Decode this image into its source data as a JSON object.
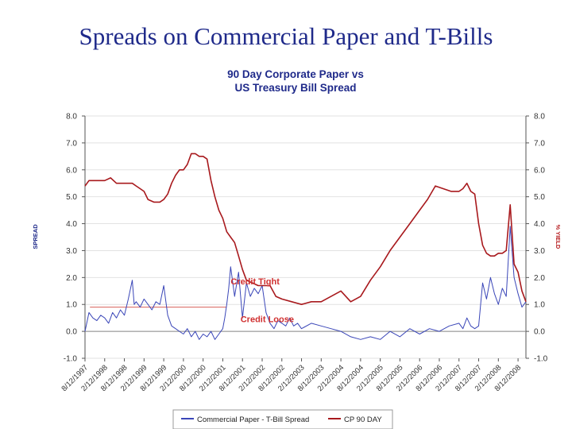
{
  "slide_title": "Spreads on Commercial Paper and T-Bills",
  "chart_data": {
    "type": "line",
    "title_lines": [
      "90 Day Corporate Paper vs",
      "US Treasury Bill Spread"
    ],
    "ylabel_left": "SPREAD",
    "ylabel_right": "% YIELD",
    "ylim": [
      -1.0,
      8.0
    ],
    "yticks": [
      "-1.0",
      "0.0",
      "1.0",
      "2.0",
      "3.0",
      "4.0",
      "5.0",
      "6.0",
      "7.0",
      "8.0"
    ],
    "xticks": [
      "8/12/1997",
      "2/12/1998",
      "8/12/1998",
      "2/12/1999",
      "8/12/1999",
      "2/12/2000",
      "8/12/2000",
      "2/12/2001",
      "8/12/2001",
      "2/12/2002",
      "8/12/2002",
      "2/12/2003",
      "8/12/2003",
      "2/12/2004",
      "8/12/2004",
      "2/12/2005",
      "8/12/2005",
      "2/12/2006",
      "8/12/2006",
      "2/12/2007",
      "8/12/2007",
      "2/12/2008",
      "8/12/2008"
    ],
    "grid": true,
    "legend_position": "bottom",
    "colors": {
      "spread": "#3a46b8",
      "cp": "#a8191d",
      "reference": "#d8605a"
    },
    "reference_line": {
      "value": 0.9,
      "x_start": 0.25,
      "x_end": 7.2
    },
    "annotations": [
      {
        "text": "Credit Tight",
        "x": 7.4,
        "y": 1.75
      },
      {
        "text": "Credit Loose",
        "x": 7.9,
        "y": 0.35
      }
    ],
    "series": [
      {
        "name": "Commercial Paper - T-Bill Spread",
        "x": [
          0.0,
          0.2,
          0.4,
          0.6,
          0.8,
          1.0,
          1.2,
          1.4,
          1.6,
          1.8,
          2.0,
          2.2,
          2.4,
          2.5,
          2.6,
          2.8,
          3.0,
          3.2,
          3.4,
          3.6,
          3.8,
          4.0,
          4.2,
          4.4,
          4.6,
          4.8,
          5.0,
          5.2,
          5.4,
          5.6,
          5.8,
          6.0,
          6.2,
          6.4,
          6.6,
          6.8,
          7.0,
          7.1,
          7.2,
          7.3,
          7.4,
          7.6,
          7.8,
          8.0,
          8.2,
          8.4,
          8.6,
          8.8,
          9.0,
          9.2,
          9.4,
          9.6,
          9.8,
          10.0,
          10.2,
          10.4,
          10.6,
          10.8,
          11.0,
          11.5,
          12.0,
          12.5,
          13.0,
          13.5,
          14.0,
          14.5,
          15.0,
          15.5,
          16.0,
          16.5,
          17.0,
          17.5,
          18.0,
          18.5,
          19.0,
          19.2,
          19.4,
          19.6,
          19.8,
          20.0,
          20.2,
          20.4,
          20.6,
          20.8,
          21.0,
          21.2,
          21.4,
          21.6,
          21.8,
          22.0,
          22.2,
          22.4
        ],
        "values": [
          0.0,
          0.7,
          0.5,
          0.4,
          0.6,
          0.5,
          0.3,
          0.7,
          0.5,
          0.8,
          0.6,
          1.2,
          1.9,
          1.0,
          1.1,
          0.9,
          1.2,
          1.0,
          0.8,
          1.1,
          1.0,
          1.7,
          0.6,
          0.2,
          0.1,
          0.0,
          -0.1,
          0.1,
          -0.2,
          0.0,
          -0.3,
          -0.1,
          -0.2,
          0.0,
          -0.3,
          -0.1,
          0.1,
          0.5,
          1.0,
          1.6,
          2.4,
          1.3,
          2.2,
          0.5,
          1.8,
          1.3,
          1.6,
          1.4,
          1.7,
          0.7,
          0.3,
          0.1,
          0.4,
          0.3,
          0.2,
          0.5,
          0.2,
          0.3,
          0.1,
          0.3,
          0.2,
          0.1,
          0.0,
          -0.2,
          -0.3,
          -0.2,
          -0.3,
          0.0,
          -0.2,
          0.1,
          -0.1,
          0.1,
          0.0,
          0.2,
          0.3,
          0.1,
          0.5,
          0.2,
          0.1,
          0.2,
          1.8,
          1.2,
          2.0,
          1.4,
          1.0,
          1.6,
          1.3,
          3.9,
          2.0,
          1.4,
          0.9,
          1.1
        ]
      },
      {
        "name": "CP 90 DAY",
        "x": [
          0.0,
          0.2,
          0.4,
          0.6,
          0.8,
          1.0,
          1.3,
          1.6,
          1.8,
          2.0,
          2.2,
          2.4,
          2.6,
          2.8,
          3.0,
          3.2,
          3.5,
          3.8,
          4.0,
          4.2,
          4.4,
          4.6,
          4.8,
          5.0,
          5.2,
          5.4,
          5.6,
          5.8,
          6.0,
          6.2,
          6.4,
          6.6,
          6.8,
          7.0,
          7.2,
          7.4,
          7.6,
          7.8,
          8.0,
          8.2,
          8.5,
          8.8,
          9.1,
          9.4,
          9.7,
          10.0,
          10.5,
          11.0,
          11.5,
          12.0,
          12.5,
          13.0,
          13.5,
          14.0,
          14.5,
          15.0,
          15.5,
          16.0,
          16.5,
          17.0,
          17.4,
          17.8,
          18.2,
          18.6,
          19.0,
          19.2,
          19.4,
          19.6,
          19.8,
          20.0,
          20.2,
          20.4,
          20.6,
          20.8,
          21.0,
          21.2,
          21.4,
          21.6,
          21.8,
          22.0,
          22.2,
          22.4
        ],
        "values": [
          5.4,
          5.6,
          5.6,
          5.6,
          5.6,
          5.6,
          5.7,
          5.5,
          5.5,
          5.5,
          5.5,
          5.5,
          5.4,
          5.3,
          5.2,
          4.9,
          4.8,
          4.8,
          4.9,
          5.1,
          5.5,
          5.8,
          6.0,
          6.0,
          6.2,
          6.6,
          6.6,
          6.5,
          6.5,
          6.4,
          5.6,
          5.0,
          4.5,
          4.2,
          3.7,
          3.5,
          3.3,
          2.8,
          2.3,
          1.9,
          1.8,
          1.7,
          1.7,
          1.7,
          1.3,
          1.2,
          1.1,
          1.0,
          1.1,
          1.1,
          1.3,
          1.5,
          1.1,
          1.3,
          1.9,
          2.4,
          3.0,
          3.5,
          4.0,
          4.5,
          4.9,
          5.4,
          5.3,
          5.2,
          5.2,
          5.3,
          5.5,
          5.2,
          5.1,
          4.0,
          3.2,
          2.9,
          2.8,
          2.8,
          2.9,
          2.9,
          3.0,
          4.7,
          2.5,
          2.2,
          1.5,
          1.1
        ]
      }
    ]
  }
}
